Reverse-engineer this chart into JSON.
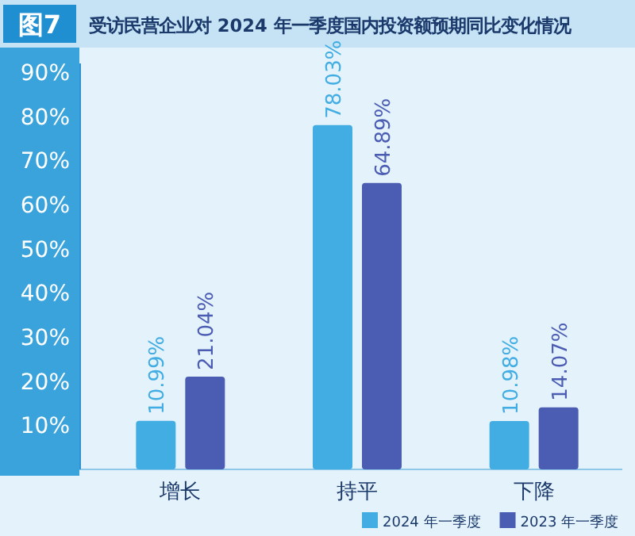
{
  "chart_data": {
    "type": "bar",
    "title": "受访民营企业对 2024 年一季度国内投资额预期同比变化情况",
    "annotations": [
      "图7"
    ],
    "categories": [
      "增长",
      "持平",
      "下降"
    ],
    "series": [
      {
        "name": "2024 年一季度",
        "color": "#41ade3",
        "values": [
          10.99,
          78.03,
          10.98
        ],
        "value_labels": [
          "10.99%",
          "78.03%",
          "10.98%"
        ]
      },
      {
        "name": "2023 年一季度",
        "color": "#4b5cb3",
        "values": [
          21.04,
          64.89,
          14.07
        ],
        "value_labels": [
          "21.04%",
          "64.89%",
          "14.07%"
        ]
      }
    ],
    "ylim": [
      0,
      92
    ],
    "yticks": [
      {
        "value": 10,
        "label": "10%"
      },
      {
        "value": 20,
        "label": "20%"
      },
      {
        "value": 30,
        "label": "30%"
      },
      {
        "value": 40,
        "label": "40%"
      },
      {
        "value": 50,
        "label": "50%"
      },
      {
        "value": 60,
        "label": "60%"
      },
      {
        "value": 70,
        "label": "70%"
      },
      {
        "value": 80,
        "label": "80%"
      },
      {
        "value": 90,
        "label": "90%"
      }
    ],
    "legend": "bottom right",
    "grid": false
  }
}
